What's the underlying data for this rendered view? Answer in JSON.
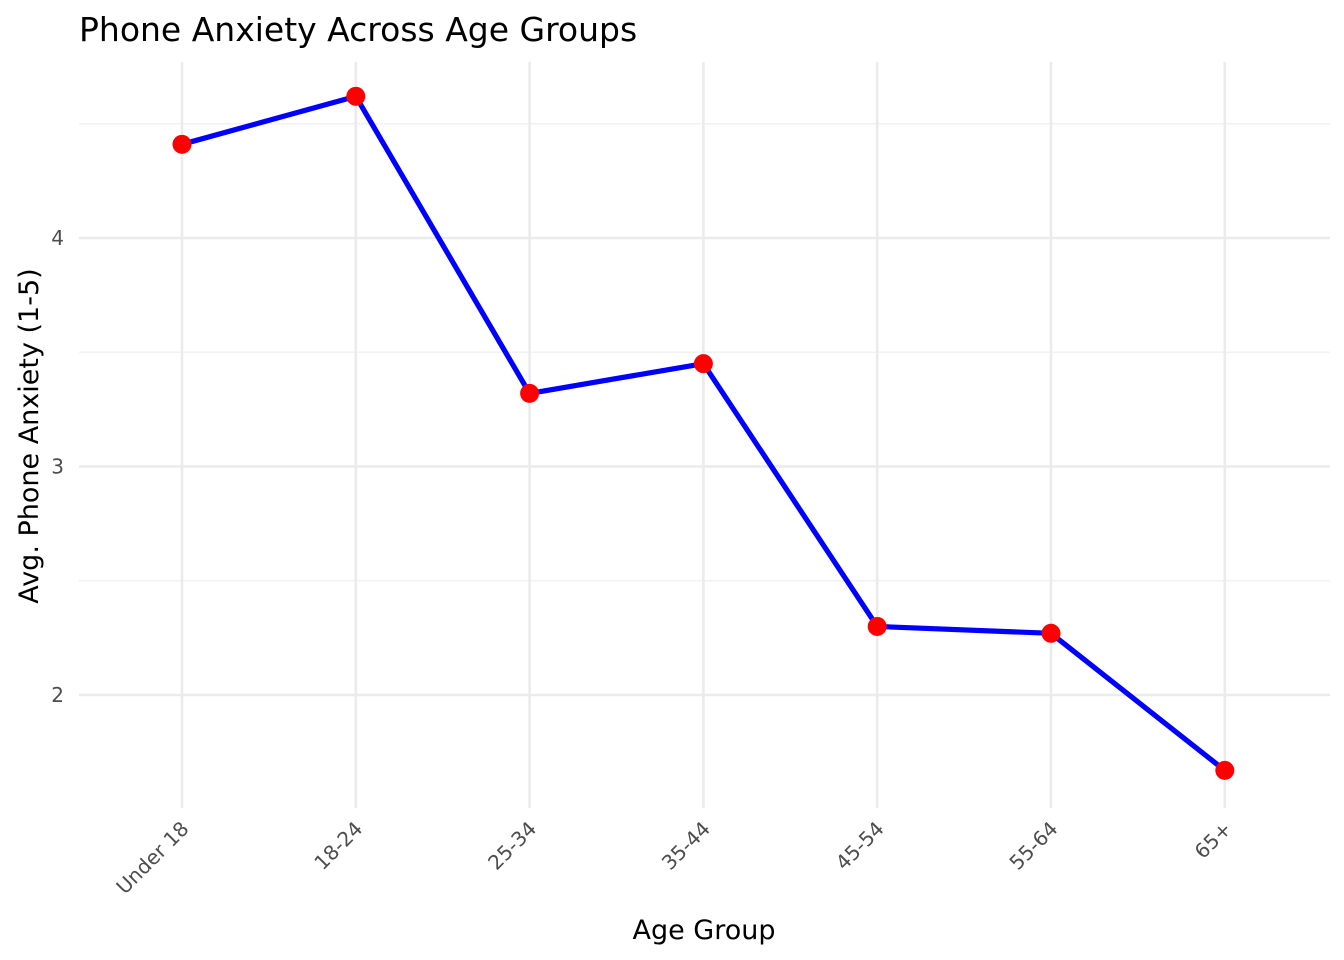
{
  "chart_data": {
    "type": "line",
    "title": "Phone Anxiety Across Age Groups",
    "xlabel": "Age Group",
    "ylabel": "Avg. Phone Anxiety (1-5)",
    "categories": [
      "Under 18",
      "18-24",
      "25-34",
      "35-44",
      "45-54",
      "55-64",
      "65+"
    ],
    "series": [
      {
        "values": [
          4.41,
          4.62,
          3.32,
          3.45,
          2.3,
          2.27,
          1.67
        ]
      }
    ],
    "ylim": [
      1.55,
      4.75
    ],
    "yticks": [
      2,
      3,
      4
    ],
    "grid": true,
    "legend": "none",
    "colors": {
      "line": "#0000ff",
      "point": "#ff0000"
    }
  }
}
